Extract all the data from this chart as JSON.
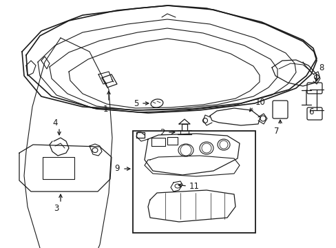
{
  "bg_color": "#ffffff",
  "line_color": "#1a1a1a",
  "fig_width": 4.89,
  "fig_height": 3.6,
  "dpi": 100,
  "title_fontsize": 7,
  "label_fontsize": 8.5
}
